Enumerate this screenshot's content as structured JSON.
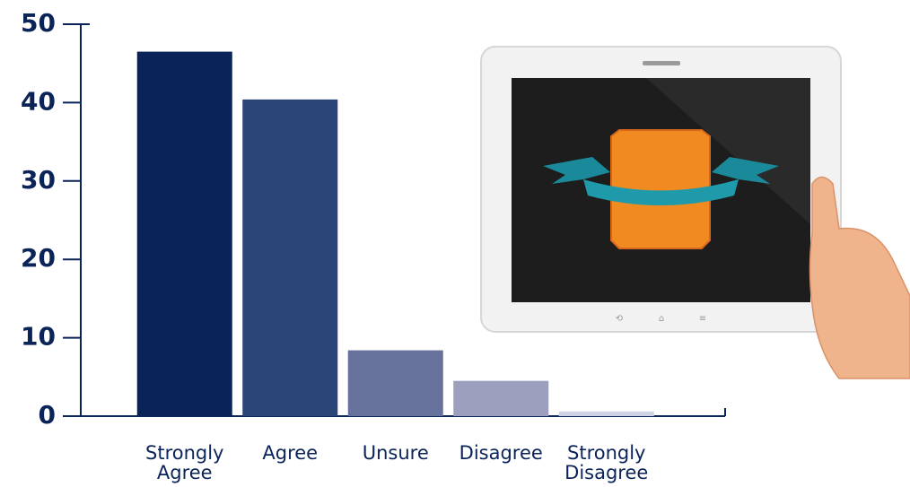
{
  "chart_data": {
    "type": "bar",
    "categories": [
      "Strongly Agree",
      "Agree",
      "Unsure",
      "Disagree",
      "Strongly Disagree"
    ],
    "values": [
      46.5,
      40.4,
      8.4,
      4.5,
      0.6
    ],
    "colors": [
      "#0a2358",
      "#2b4578",
      "#66729c",
      "#9c9fbe",
      "#cfd2e2"
    ],
    "ylim": [
      0,
      50
    ],
    "yticks": [
      0,
      10,
      20,
      30,
      40,
      50
    ],
    "grid": false
  }
}
